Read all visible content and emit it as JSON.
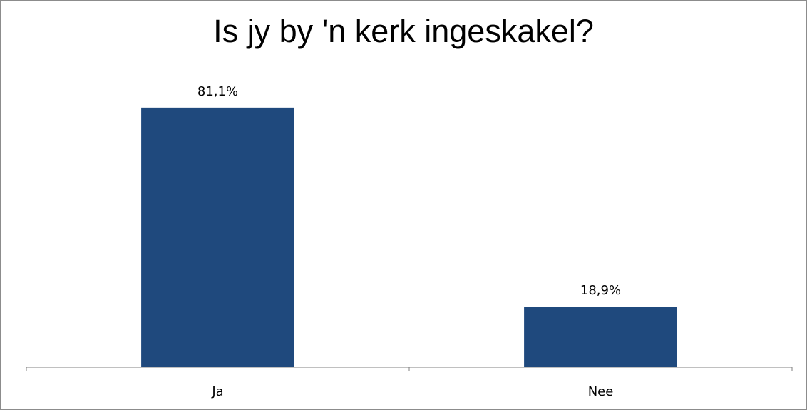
{
  "chart_data": {
    "type": "bar",
    "title": "Is jy by 'n kerk ingeskakel?",
    "xlabel": "",
    "ylabel": "",
    "categories": [
      "Ja",
      "Nee"
    ],
    "values": [
      81.1,
      18.9
    ],
    "data_labels": [
      "81,1%",
      "18,9%"
    ],
    "ylim": [
      0,
      90
    ],
    "grid": false,
    "legend": "none",
    "bar_color": "#1f497d"
  }
}
